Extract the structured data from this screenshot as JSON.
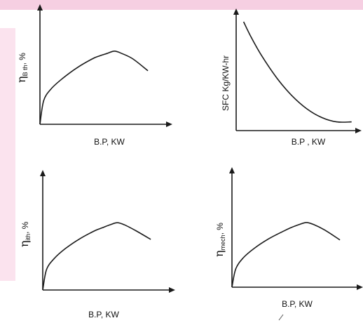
{
  "decor": {
    "band_color": "#f6cfe2",
    "side_band_color": "#fbe3ee"
  },
  "chart_data": [
    {
      "type": "line",
      "title": "",
      "xlabel": "B.P, KW",
      "ylabel": {
        "symbol": "η",
        "subscript": "B th",
        "suffix": ", %"
      },
      "series": [
        {
          "x": [
            0,
            0.05,
            0.15,
            0.3,
            0.5,
            0.7,
            0.8,
            0.9,
            1.0,
            1.1,
            1.25,
            1.45
          ],
          "y": [
            0,
            0.3,
            0.45,
            0.58,
            0.72,
            0.83,
            0.87,
            0.9,
            0.93,
            0.9,
            0.83,
            0.68
          ]
        }
      ],
      "grid": false
    },
    {
      "type": "line",
      "title": "",
      "xlabel": "B.P , KW",
      "ylabel": {
        "symbol": "",
        "subscript": "",
        "suffix": "SFC Kg/KW-hr"
      },
      "series": [
        {
          "x": [
            0.1,
            0.2,
            0.35,
            0.55,
            0.75,
            0.95,
            1.15,
            1.35,
            1.55
          ],
          "y": [
            1.0,
            0.86,
            0.68,
            0.48,
            0.32,
            0.2,
            0.12,
            0.08,
            0.08
          ]
        }
      ],
      "grid": false
    },
    {
      "type": "line",
      "title": "",
      "xlabel": "B.P, KW",
      "ylabel": {
        "symbol": "η",
        "subscript": "ith",
        "suffix": ", %"
      },
      "series": [
        {
          "x": [
            0,
            0.05,
            0.15,
            0.3,
            0.5,
            0.7,
            0.8,
            0.9,
            1.0,
            1.1,
            1.25,
            1.45
          ],
          "y": [
            0,
            0.28,
            0.43,
            0.57,
            0.71,
            0.82,
            0.86,
            0.9,
            0.93,
            0.9,
            0.82,
            0.7
          ]
        }
      ],
      "grid": false
    },
    {
      "type": "line",
      "title": "",
      "xlabel": "B.P, KW",
      "ylabel": {
        "symbol": "η",
        "subscript": "mech",
        "suffix": ", %"
      },
      "series": [
        {
          "x": [
            0,
            0.05,
            0.15,
            0.3,
            0.5,
            0.7,
            0.8,
            0.9,
            1.0,
            1.1,
            1.25,
            1.45
          ],
          "y": [
            0,
            0.26,
            0.42,
            0.56,
            0.7,
            0.81,
            0.86,
            0.9,
            0.93,
            0.9,
            0.82,
            0.68
          ]
        }
      ],
      "grid": false
    }
  ]
}
